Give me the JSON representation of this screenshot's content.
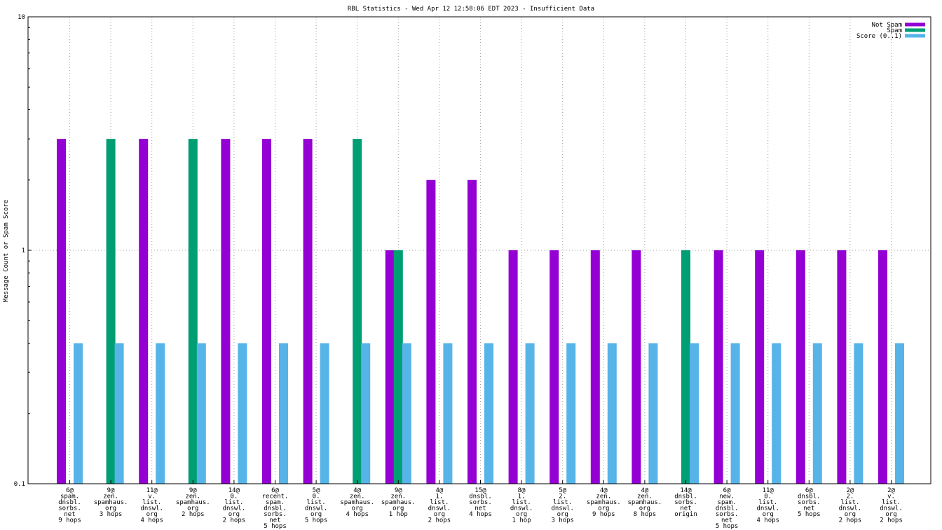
{
  "chart_data": {
    "type": "bar",
    "title": "RBL Statistics - Wed Apr 12 12:58:06 EDT 2023 - Insufficient Data",
    "ylabel": "Message Count or Spam Score",
    "xlabel": "",
    "yscale": "log",
    "ylim": [
      0.1,
      10
    ],
    "y_ticks": [
      "0.1",
      "1",
      "10"
    ],
    "grid": "on (dotted)",
    "legend_position": "top-right",
    "categories": [
      [
        "6@",
        "spam.",
        "dnsbl.",
        "sorbs.",
        "net",
        "9 hops"
      ],
      [
        "9@",
        "zen.",
        "spamhaus.",
        "org",
        "3 hops"
      ],
      [
        "11@",
        "v.",
        "list.",
        "dnswl.",
        "org",
        "4 hops"
      ],
      [
        "9@",
        "zen.",
        "spamhaus.",
        "org",
        "2 hops"
      ],
      [
        "14@",
        "0.",
        "list.",
        "dnswl.",
        "org",
        "2 hops"
      ],
      [
        "6@",
        "recent.",
        "spam.",
        "dnsbl.",
        "sorbs.",
        "net",
        "5 hops"
      ],
      [
        "5@",
        "0.",
        "list.",
        "dnswl.",
        "org",
        "5 hops"
      ],
      [
        "4@",
        "zen.",
        "spamhaus.",
        "org",
        "4 hops"
      ],
      [
        "9@",
        "zen.",
        "spamhaus.",
        "org",
        "1 hop"
      ],
      [
        "4@",
        "1.",
        "list.",
        "dnswl.",
        "org",
        "2 hops"
      ],
      [
        "15@",
        "dnsbl.",
        "sorbs.",
        "net",
        "4 hops"
      ],
      [
        "8@",
        "1.",
        "list.",
        "dnswl.",
        "org",
        "1 hop"
      ],
      [
        "5@",
        "2.",
        "list.",
        "dnswl.",
        "org",
        "3 hops"
      ],
      [
        "4@",
        "zen.",
        "spamhaus.",
        "org",
        "9 hops"
      ],
      [
        "4@",
        "zen.",
        "spamhaus.",
        "org",
        "8 hops"
      ],
      [
        "14@",
        "dnsbl.",
        "sorbs.",
        "net",
        "origin"
      ],
      [
        "6@",
        "new.",
        "spam.",
        "dnsbl.",
        "sorbs.",
        "net",
        "5 hops"
      ],
      [
        "11@",
        "0.",
        "list.",
        "dnswl.",
        "org",
        "4 hops"
      ],
      [
        "6@",
        "dnsbl.",
        "sorbs.",
        "net",
        "5 hops"
      ],
      [
        "2@",
        "2.",
        "list.",
        "dnswl.",
        "org",
        "2 hops"
      ],
      [
        "2@",
        "v.",
        "list.",
        "dnswl.",
        "org",
        "2 hops"
      ]
    ],
    "series": [
      {
        "name": "Not Spam",
        "color": "#9400d3",
        "values": [
          3,
          0,
          3,
          0,
          3,
          3,
          3,
          0,
          1,
          2,
          2,
          1,
          1,
          1,
          1,
          0,
          1,
          1,
          1,
          1,
          1
        ]
      },
      {
        "name": "Spam",
        "color": "#009e73",
        "values": [
          0,
          3,
          0,
          3,
          0,
          0,
          0,
          3,
          1,
          0,
          0,
          0,
          0,
          0,
          0,
          1,
          0,
          0,
          0,
          0,
          0
        ]
      },
      {
        "name": "Score (0..1)",
        "color": "#56b4e9",
        "values": [
          0.4,
          0.4,
          0.4,
          0.4,
          0.4,
          0.4,
          0.4,
          0.4,
          0.4,
          0.4,
          0.4,
          0.4,
          0.4,
          0.4,
          0.4,
          0.4,
          0.4,
          0.4,
          0.4,
          0.4,
          0.4
        ]
      }
    ]
  }
}
